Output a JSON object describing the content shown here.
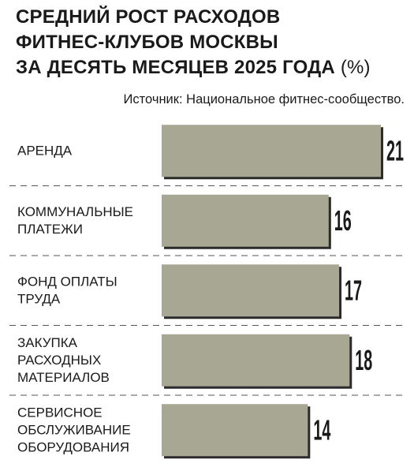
{
  "title_lines": [
    "СРЕДНИЙ РОСТ РАСХОДОВ",
    "ФИТНЕС-КЛУБОВ МОСКВЫ",
    "ЗА ДЕСЯТЬ МЕСЯЦЕВ 2025 ГОДА"
  ],
  "title_unit": "(%)",
  "source": "Источник: Национальное фитнес-сообщество.",
  "colors": {
    "bar": "#a7a794",
    "bar_shadow": "#2b2b2b",
    "divider": "#555555"
  },
  "chart_data": {
    "type": "bar",
    "orientation": "horizontal",
    "title": "СРЕДНИЙ РОСТ РАСХОДОВ ФИТНЕС-КЛУБОВ МОСКВЫ ЗА ДЕСЯТЬ МЕСЯЦЕВ 2025 ГОДА (%)",
    "categories": [
      [
        "АРЕНДА"
      ],
      [
        "КОММУНАЛЬНЫЕ",
        "ПЛАТЕЖИ"
      ],
      [
        "ФОНД ОПЛАТЫ",
        "ТРУДА"
      ],
      [
        "ЗАКУПКА",
        "РАСХОДНЫХ",
        "МАТЕРИАЛОВ"
      ],
      [
        "СЕРВИСНОЕ",
        "ОБСЛУЖИВАНИЕ",
        "ОБОРУДОВАНИЯ"
      ]
    ],
    "values": [
      21,
      16,
      17,
      18,
      14
    ],
    "value_labels": [
      "21",
      "16",
      "17",
      "18",
      "14"
    ],
    "xlim": [
      0,
      21
    ],
    "grid": false,
    "legend": "none"
  }
}
